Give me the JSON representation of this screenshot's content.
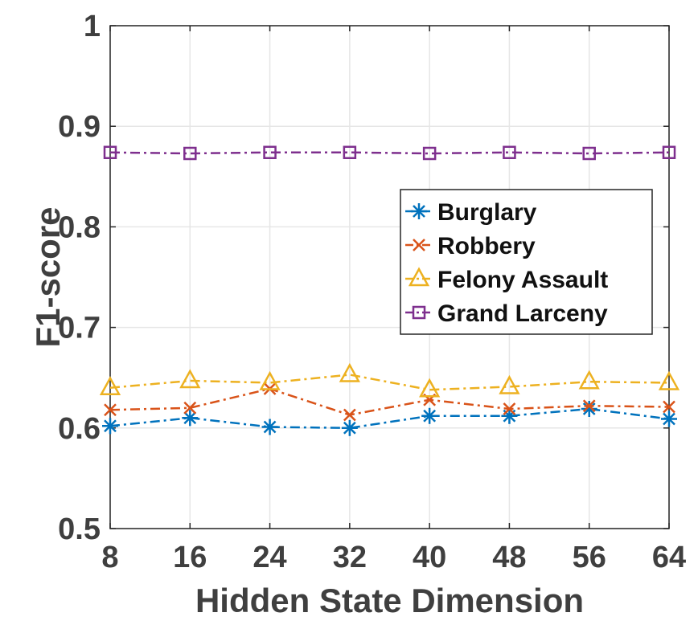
{
  "chart_data": {
    "type": "line",
    "xlabel": "Hidden State Dimension",
    "ylabel": "F1-score",
    "x": [
      8,
      16,
      24,
      32,
      40,
      48,
      56,
      64
    ],
    "xticks": [
      "8",
      "16",
      "24",
      "32",
      "40",
      "48",
      "56",
      "64"
    ],
    "yticks": [
      "0.5",
      "0.6",
      "0.7",
      "0.8",
      "0.9",
      "1"
    ],
    "ylim": [
      0.5,
      1.0
    ],
    "xlim": [
      8,
      64
    ],
    "grid": true,
    "legend_position": "right",
    "series": [
      {
        "name": "Burglary",
        "color": "#0072BD",
        "marker": "asterisk",
        "values": [
          0.602,
          0.61,
          0.601,
          0.6,
          0.612,
          0.612,
          0.619,
          0.609
        ]
      },
      {
        "name": "Robbery",
        "color": "#D95319",
        "marker": "x",
        "values": [
          0.618,
          0.62,
          0.639,
          0.613,
          0.628,
          0.619,
          0.622,
          0.621
        ]
      },
      {
        "name": "Felony Assault",
        "color": "#EDB120",
        "marker": "triangle",
        "values": [
          0.64,
          0.647,
          0.645,
          0.653,
          0.638,
          0.641,
          0.646,
          0.645
        ]
      },
      {
        "name": "Grand Larceny",
        "color": "#7E2F8E",
        "marker": "square",
        "values": [
          0.874,
          0.873,
          0.874,
          0.874,
          0.873,
          0.874,
          0.873,
          0.874
        ]
      }
    ]
  }
}
